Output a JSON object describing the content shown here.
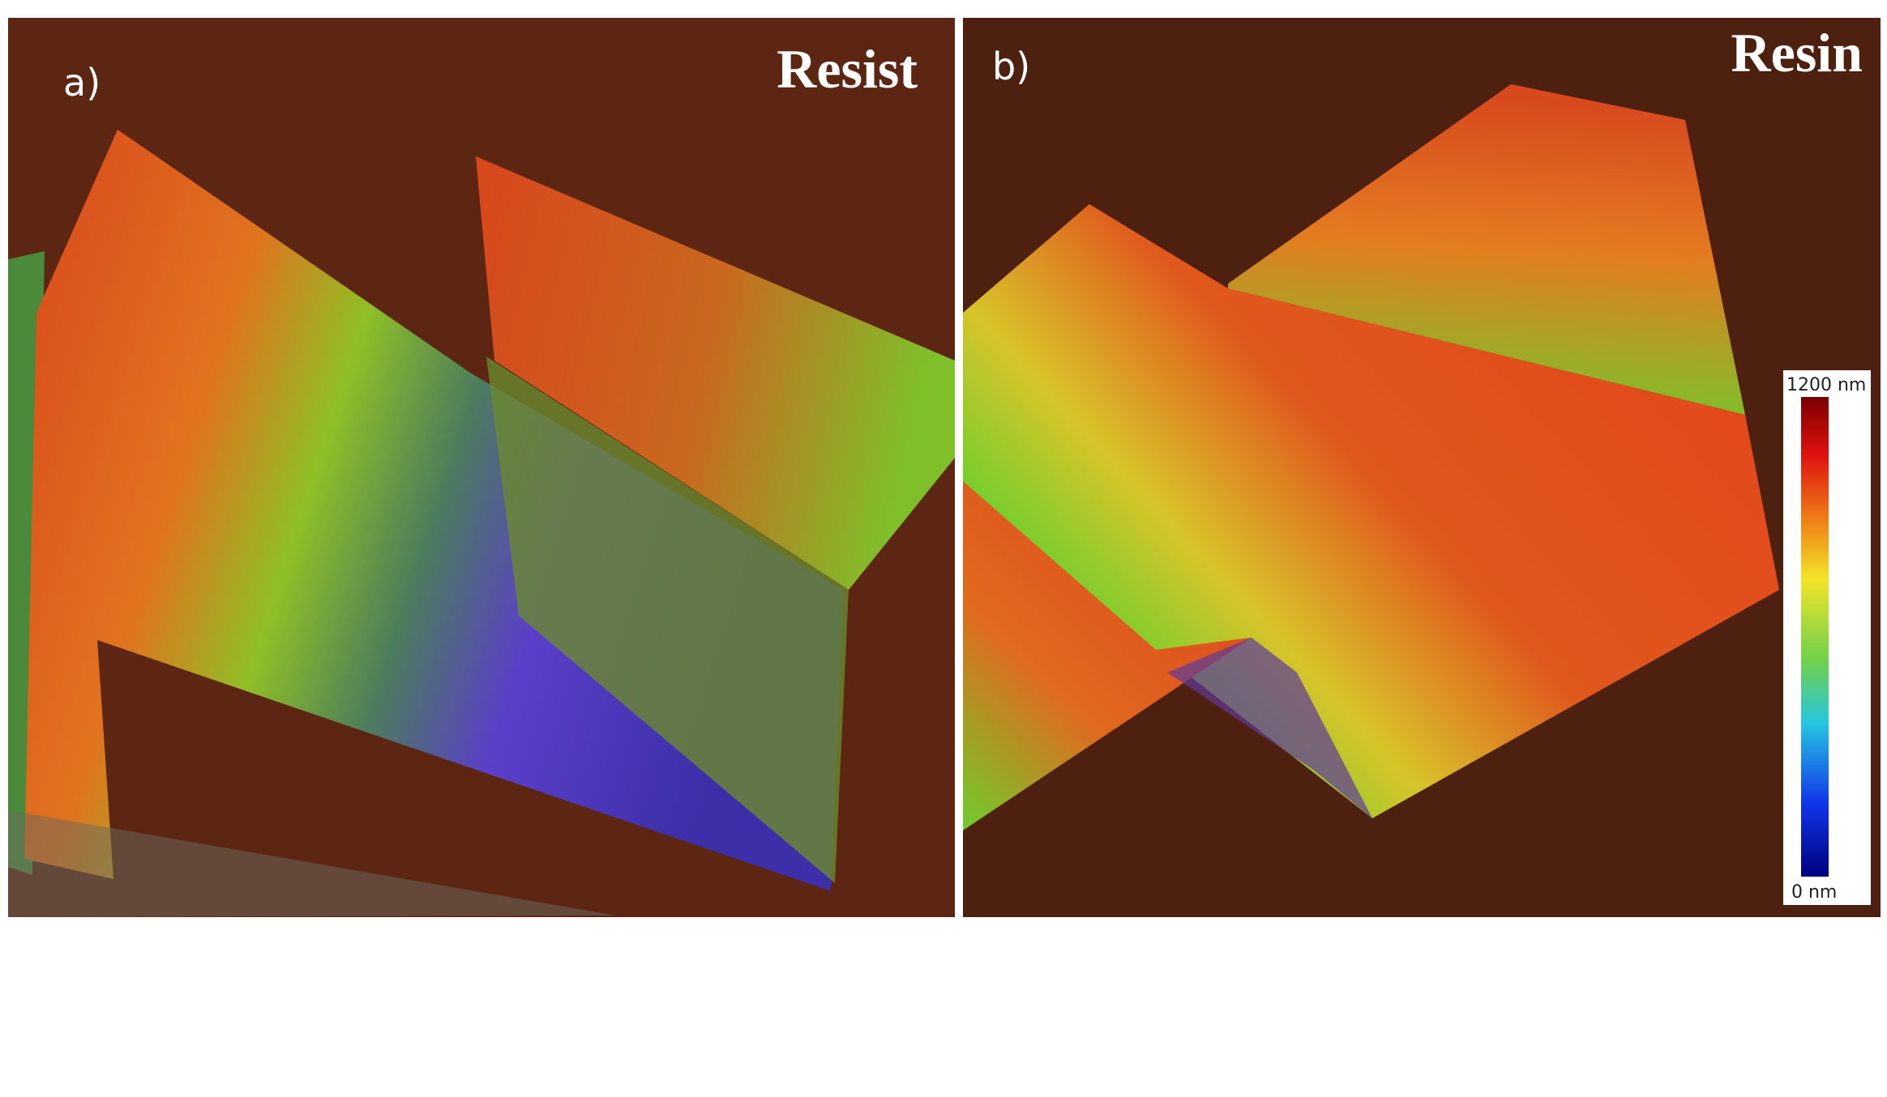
{
  "panels": [
    {
      "label": "a)",
      "title": "Resist"
    },
    {
      "label": "b)",
      "title": "Resin"
    }
  ],
  "colorbar": {
    "max_label": "1200 nm",
    "min_label": "0 nm"
  }
}
